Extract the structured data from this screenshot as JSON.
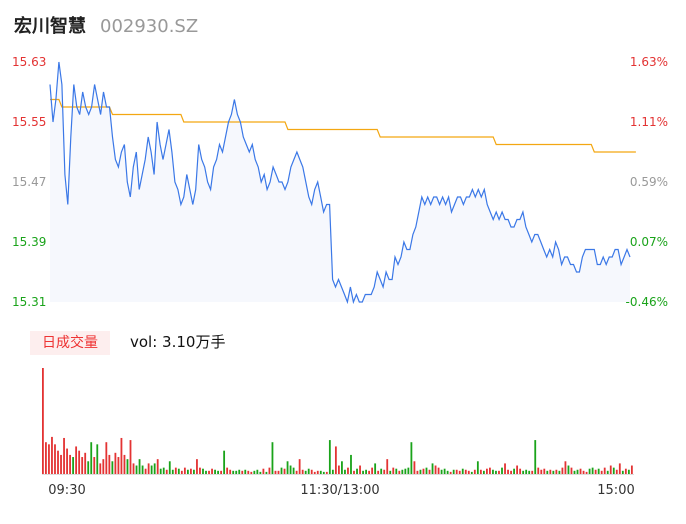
{
  "header": {
    "name": "宏川智慧",
    "code": "002930.SZ"
  },
  "volume_panel": {
    "badge": "日成交量",
    "summary": "vol: 3.10万手"
  },
  "colors": {
    "up": "#e33333",
    "down": "#1aa31a",
    "price_line": "#3b78e7",
    "avg_line": "#f3a712",
    "area_fill": "#eef3fc"
  },
  "chart_data": [
    {
      "type": "line",
      "title": "",
      "ylim": [
        15.31,
        15.63
      ],
      "y_ticks_left": [
        "15.63",
        "15.55",
        "15.47",
        "15.39",
        "15.31"
      ],
      "y_ticks_right": [
        "1.63%",
        "1.11%",
        "0.59%",
        "0.07%",
        "-0.46%"
      ],
      "x_ticks": [
        "09:30",
        "11:30/13:00",
        "15:00"
      ],
      "series": [
        {
          "role": "price",
          "values": [
            15.6,
            15.55,
            15.58,
            15.63,
            15.6,
            15.48,
            15.44,
            15.53,
            15.6,
            15.57,
            15.56,
            15.59,
            15.57,
            15.56,
            15.57,
            15.6,
            15.58,
            15.56,
            15.59,
            15.57,
            15.57,
            15.53,
            15.5,
            15.49,
            15.51,
            15.52,
            15.47,
            15.45,
            15.49,
            15.51,
            15.46,
            15.48,
            15.5,
            15.53,
            15.51,
            15.48,
            15.55,
            15.52,
            15.5,
            15.52,
            15.54,
            15.51,
            15.47,
            15.46,
            15.44,
            15.45,
            15.48,
            15.46,
            15.44,
            15.46,
            15.52,
            15.5,
            15.49,
            15.47,
            15.46,
            15.49,
            15.5,
            15.52,
            15.51,
            15.53,
            15.55,
            15.56,
            15.58,
            15.56,
            15.55,
            15.53,
            15.52,
            15.51,
            15.52,
            15.5,
            15.49,
            15.47,
            15.48,
            15.46,
            15.47,
            15.49,
            15.48,
            15.47,
            15.47,
            15.46,
            15.47,
            15.49,
            15.5,
            15.51,
            15.5,
            15.49,
            15.47,
            15.45,
            15.44,
            15.46,
            15.47,
            15.45,
            15.43,
            15.44,
            15.44,
            15.34,
            15.33,
            15.34,
            15.33,
            15.32,
            15.31,
            15.33,
            15.31,
            15.32,
            15.31,
            15.31,
            15.32,
            15.32,
            15.32,
            15.33,
            15.35,
            15.34,
            15.33,
            15.35,
            15.34,
            15.34,
            15.37,
            15.36,
            15.37,
            15.39,
            15.38,
            15.38,
            15.4,
            15.41,
            15.43,
            15.45,
            15.44,
            15.45,
            15.44,
            15.45,
            15.45,
            15.44,
            15.45,
            15.44,
            15.45,
            15.43,
            15.44,
            15.45,
            15.45,
            15.44,
            15.45,
            15.45,
            15.46,
            15.45,
            15.46,
            15.45,
            15.46,
            15.44,
            15.43,
            15.42,
            15.43,
            15.42,
            15.43,
            15.42,
            15.42,
            15.41,
            15.41,
            15.42,
            15.42,
            15.43,
            15.41,
            15.4,
            15.39,
            15.4,
            15.4,
            15.39,
            15.38,
            15.37,
            15.38,
            15.37,
            15.39,
            15.38,
            15.36,
            15.37,
            15.37,
            15.36,
            15.36,
            15.35,
            15.35,
            15.37,
            15.38,
            15.38,
            15.38,
            15.38,
            15.36,
            15.36,
            15.37,
            15.36,
            15.37,
            15.37,
            15.38,
            15.38,
            15.36,
            15.37,
            15.38,
            15.37
          ]
        },
        {
          "role": "average",
          "values": [
            15.58,
            15.58,
            15.58,
            15.58,
            15.57,
            15.57,
            15.57,
            15.57,
            15.57,
            15.57,
            15.57,
            15.57,
            15.57,
            15.57,
            15.57,
            15.57,
            15.57,
            15.57,
            15.57,
            15.57,
            15.57,
            15.56,
            15.56,
            15.56,
            15.56,
            15.56,
            15.56,
            15.56,
            15.56,
            15.56,
            15.56,
            15.56,
            15.56,
            15.56,
            15.56,
            15.56,
            15.56,
            15.56,
            15.56,
            15.56,
            15.56,
            15.56,
            15.56,
            15.56,
            15.56,
            15.55,
            15.55,
            15.55,
            15.55,
            15.55,
            15.55,
            15.55,
            15.55,
            15.55,
            15.55,
            15.55,
            15.55,
            15.55,
            15.55,
            15.55,
            15.55,
            15.55,
            15.55,
            15.55,
            15.55,
            15.55,
            15.55,
            15.55,
            15.55,
            15.55,
            15.55,
            15.55,
            15.55,
            15.55,
            15.55,
            15.55,
            15.55,
            15.55,
            15.55,
            15.55,
            15.54,
            15.54,
            15.54,
            15.54,
            15.54,
            15.54,
            15.54,
            15.54,
            15.54,
            15.54,
            15.54,
            15.54,
            15.54,
            15.54,
            15.54,
            15.54,
            15.54,
            15.54,
            15.54,
            15.54,
            15.54,
            15.54,
            15.54,
            15.54,
            15.54,
            15.54,
            15.54,
            15.54,
            15.54,
            15.54,
            15.54,
            15.53,
            15.53,
            15.53,
            15.53,
            15.53,
            15.53,
            15.53,
            15.53,
            15.53,
            15.53,
            15.53,
            15.53,
            15.53,
            15.53,
            15.53,
            15.53,
            15.53,
            15.53,
            15.53,
            15.53,
            15.53,
            15.53,
            15.53,
            15.53,
            15.53,
            15.53,
            15.53,
            15.53,
            15.53,
            15.53,
            15.53,
            15.53,
            15.53,
            15.53,
            15.53,
            15.53,
            15.53,
            15.53,
            15.53,
            15.52,
            15.52,
            15.52,
            15.52,
            15.52,
            15.52,
            15.52,
            15.52,
            15.52,
            15.52,
            15.52,
            15.52,
            15.52,
            15.52,
            15.52,
            15.52,
            15.52,
            15.52,
            15.52,
            15.52,
            15.52,
            15.52,
            15.52,
            15.52,
            15.52,
            15.52,
            15.52,
            15.52,
            15.52,
            15.52,
            15.52,
            15.52,
            15.52,
            15.51,
            15.51,
            15.51,
            15.51,
            15.51,
            15.51,
            15.51,
            15.51,
            15.51,
            15.51,
            15.51,
            15.51,
            15.51,
            15.51,
            15.51
          ]
        }
      ]
    },
    {
      "type": "bar",
      "title": "",
      "ylim": [
        0,
        100
      ],
      "values": [
        100,
        30,
        28,
        35,
        28,
        22,
        18,
        34,
        24,
        18,
        16,
        26,
        22,
        16,
        20,
        12,
        30,
        16,
        28,
        10,
        14,
        30,
        18,
        12,
        20,
        16,
        34,
        18,
        14,
        32,
        10,
        8,
        14,
        8,
        5,
        10,
        8,
        10,
        14,
        5,
        6,
        4,
        12,
        4,
        6,
        5,
        3,
        6,
        4,
        5,
        4,
        14,
        6,
        5,
        3,
        3,
        5,
        4,
        3,
        3,
        22,
        6,
        4,
        3,
        3,
        4,
        3,
        4,
        3,
        2,
        3,
        4,
        2,
        5,
        2,
        6,
        30,
        3,
        3,
        6,
        5,
        12,
        8,
        6,
        3,
        14,
        4,
        3,
        5,
        4,
        2,
        3,
        3,
        2,
        2,
        32,
        4,
        26,
        8,
        12,
        4,
        6,
        18,
        3,
        5,
        8,
        3,
        4,
        3,
        6,
        10,
        3,
        5,
        4,
        14,
        3,
        6,
        5,
        3,
        4,
        5,
        6,
        30,
        12,
        3,
        4,
        5,
        6,
        4,
        10,
        8,
        6,
        4,
        5,
        3,
        2,
        4,
        4,
        3,
        5,
        4,
        3,
        2,
        4,
        12,
        4,
        3,
        5,
        6,
        4,
        3,
        3,
        6,
        10,
        4,
        3,
        5,
        8,
        5,
        3,
        4,
        3,
        3,
        32,
        6,
        4,
        5,
        3,
        4,
        3,
        4,
        3,
        6,
        12,
        8,
        6,
        3,
        4,
        5,
        3,
        2,
        5,
        6,
        4,
        5,
        3,
        6,
        3,
        8,
        6,
        4,
        10,
        3,
        5,
        4,
        8
      ],
      "up": [
        true,
        true,
        true,
        true,
        true,
        true,
        true,
        true,
        true,
        true,
        false,
        true,
        true,
        true,
        true,
        false,
        false,
        true,
        false,
        true,
        true,
        true,
        true,
        false,
        true,
        true,
        true,
        true,
        false,
        true,
        true,
        false,
        false,
        false,
        true,
        true,
        false,
        false,
        true,
        false,
        false,
        true,
        false,
        false,
        true,
        false,
        true,
        true,
        false,
        true,
        false,
        true,
        true,
        false,
        false,
        true,
        true,
        false,
        false,
        true,
        false,
        true,
        true,
        false,
        false,
        false,
        true,
        false,
        true,
        true,
        false,
        false,
        false,
        true,
        false,
        true,
        false,
        true,
        true,
        false,
        true,
        false,
        false,
        false,
        true,
        true,
        true,
        false,
        false,
        true,
        true,
        true,
        false,
        false,
        true,
        false,
        false,
        true,
        true,
        false,
        false,
        true,
        false,
        true,
        false,
        true,
        false,
        false,
        true,
        true,
        false,
        true,
        false,
        true,
        true,
        false,
        true,
        false,
        true,
        false,
        false,
        false,
        false,
        true,
        true,
        false,
        true,
        false,
        true,
        false,
        true,
        true,
        false,
        false,
        false,
        true,
        false,
        true,
        true,
        false,
        true,
        true,
        false,
        true,
        false,
        true,
        false,
        true,
        true,
        false,
        false,
        true,
        false,
        true,
        true,
        true,
        false,
        true,
        true,
        false,
        false,
        false,
        true,
        false,
        true,
        true,
        true,
        false,
        true,
        false,
        true,
        false,
        true,
        true,
        false,
        true,
        false,
        false,
        true,
        true,
        true,
        false,
        false,
        true,
        false,
        true,
        true,
        false,
        true,
        false,
        true,
        true,
        false,
        true,
        false,
        true,
        false,
        false,
        false
      ]
    }
  ]
}
